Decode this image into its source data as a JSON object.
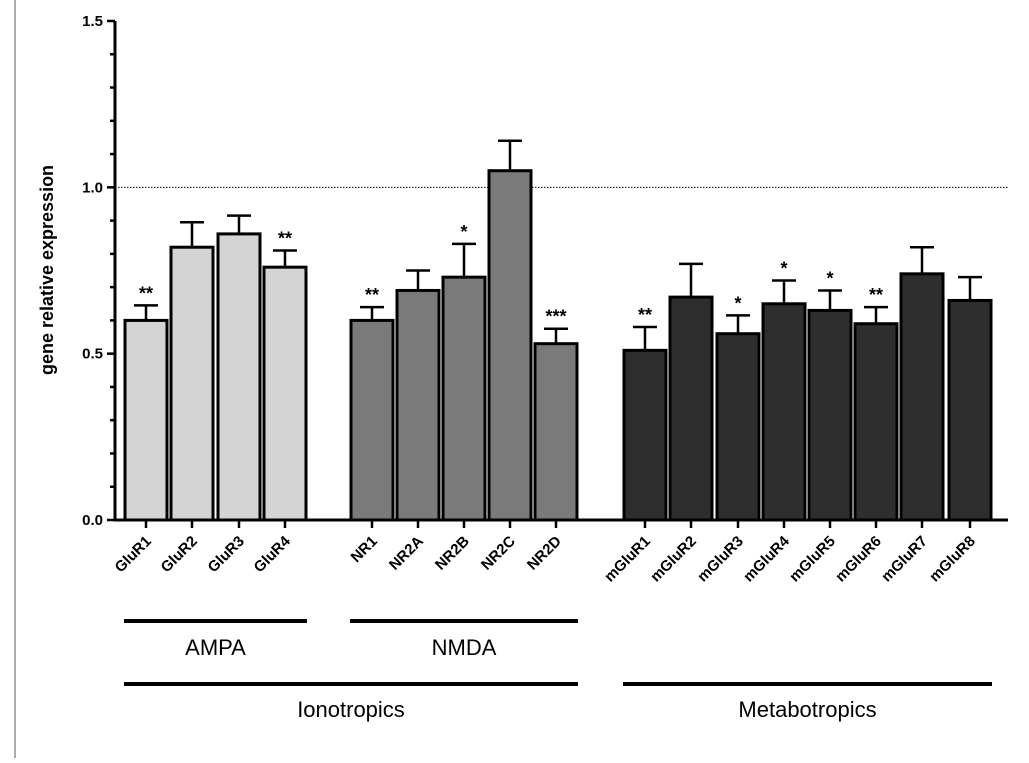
{
  "chart_data": {
    "type": "bar",
    "title": "",
    "xlabel": "",
    "ylabel": "gene relative expression",
    "ylim": [
      0,
      1.5
    ],
    "yticks": [
      "0.0",
      "0.5",
      "1.0",
      "1.5"
    ],
    "reference_line": 1.0,
    "grid": false,
    "legend": "none",
    "colors": {
      "AMPA": "#d4d4d4",
      "NMDA": "#7a7a7a",
      "Metabotropics": "#2e2e2e",
      "edge": "#000000"
    },
    "categories": [
      "GluR1",
      "GluR2",
      "GluR3",
      "GluR4",
      "NR1",
      "NR2A",
      "NR2B",
      "NR2C",
      "NR2D",
      "mGluR1",
      "mGluR2",
      "mGluR3",
      "mGluR4",
      "mGluR5",
      "mGluR6",
      "mGluR7",
      "mGluR8"
    ],
    "bars": [
      {
        "label": "GluR1",
        "value": 0.6,
        "error": 0.045,
        "sig": "**",
        "group": "AMPA"
      },
      {
        "label": "GluR2",
        "value": 0.82,
        "error": 0.075,
        "sig": "",
        "group": "AMPA"
      },
      {
        "label": "GluR3",
        "value": 0.86,
        "error": 0.055,
        "sig": "",
        "group": "AMPA"
      },
      {
        "label": "GluR4",
        "value": 0.76,
        "error": 0.05,
        "sig": "**",
        "group": "AMPA"
      },
      {
        "label": "NR1",
        "value": 0.6,
        "error": 0.04,
        "sig": "**",
        "group": "NMDA"
      },
      {
        "label": "NR2A",
        "value": 0.69,
        "error": 0.06,
        "sig": "",
        "group": "NMDA"
      },
      {
        "label": "NR2B",
        "value": 0.73,
        "error": 0.1,
        "sig": "*",
        "group": "NMDA"
      },
      {
        "label": "NR2C",
        "value": 1.05,
        "error": 0.09,
        "sig": "",
        "group": "NMDA"
      },
      {
        "label": "NR2D",
        "value": 0.53,
        "error": 0.045,
        "sig": "***",
        "group": "NMDA"
      },
      {
        "label": "mGluR1",
        "value": 0.51,
        "error": 0.07,
        "sig": "**",
        "group": "Metabotropics"
      },
      {
        "label": "mGluR2",
        "value": 0.67,
        "error": 0.1,
        "sig": "",
        "group": "Metabotropics"
      },
      {
        "label": "mGluR3",
        "value": 0.56,
        "error": 0.055,
        "sig": "*",
        "group": "Metabotropics"
      },
      {
        "label": "mGluR4",
        "value": 0.65,
        "error": 0.07,
        "sig": "*",
        "group": "Metabotropics"
      },
      {
        "label": "mGluR5",
        "value": 0.63,
        "error": 0.06,
        "sig": "*",
        "group": "Metabotropics"
      },
      {
        "label": "mGluR6",
        "value": 0.59,
        "error": 0.05,
        "sig": "**",
        "group": "Metabotropics"
      },
      {
        "label": "mGluR7",
        "value": 0.74,
        "error": 0.08,
        "sig": "",
        "group": "Metabotropics"
      },
      {
        "label": "mGluR8",
        "value": 0.66,
        "error": 0.07,
        "sig": "",
        "group": "Metabotropics"
      }
    ],
    "groupings": [
      {
        "label": "AMPA",
        "from": "GluR1",
        "to": "GluR4"
      },
      {
        "label": "NMDA",
        "from": "NR1",
        "to": "NR2D"
      },
      {
        "label": "Ionotropics",
        "from": "GluR1",
        "to": "NR2D"
      },
      {
        "label": "Metabotropics",
        "from": "mGluR1",
        "to": "mGluR8"
      }
    ]
  }
}
